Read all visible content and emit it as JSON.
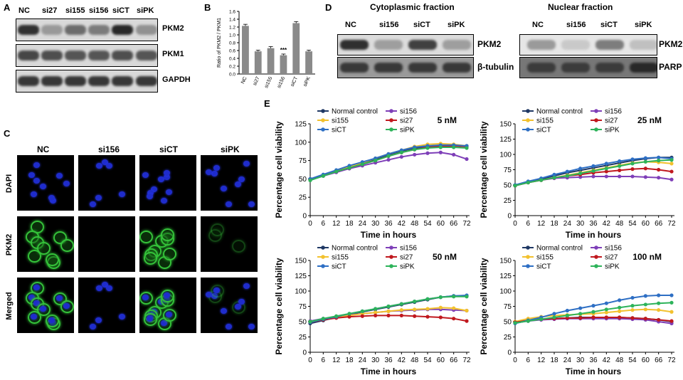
{
  "panels": {
    "a": "A",
    "b": "B",
    "c": "C",
    "d": "D",
    "e": "E"
  },
  "panel_a": {
    "lanes": [
      "NC",
      "si27",
      "si155",
      "si156",
      "siCT",
      "siPK"
    ],
    "rows": [
      "PKM2",
      "PKM1",
      "GAPDH"
    ]
  },
  "panel_b_chart": {
    "type": "bar",
    "ylabel": "Ratio of PKM2 / PKM1",
    "categories": [
      "NC",
      "si27",
      "si155",
      "si156",
      "siCT",
      "siPK"
    ],
    "values": [
      1.23,
      0.58,
      0.66,
      0.48,
      1.3,
      0.58
    ],
    "errors": [
      0.04,
      0.03,
      0.04,
      0.03,
      0.04,
      0.03
    ],
    "ylim": [
      0,
      1.6
    ],
    "yticks": [
      "0.0",
      "0.2",
      "0.4",
      "0.6",
      "0.8",
      "1.0",
      "1.2",
      "1.4",
      "1.6"
    ],
    "annotation": "***",
    "annotation_index": 3,
    "bar_color": "#8a8a8a"
  },
  "panel_c": {
    "columns": [
      "NC",
      "si156",
      "siCT",
      "siPK"
    ],
    "rows": [
      "DAPI",
      "PKM2",
      "Merged"
    ]
  },
  "panel_d": {
    "left_title": "Cytoplasmic fraction",
    "right_title": "Nuclear fraction",
    "left_lanes": [
      "NC",
      "si156",
      "siCT",
      "siPK"
    ],
    "right_lanes": [
      "NC",
      "si156",
      "siCT",
      "siPK"
    ],
    "left_rows": [
      "PKM2",
      "β-tubulin"
    ],
    "right_rows": [
      "PKM2",
      "PARP"
    ]
  },
  "legend_names": [
    "Normal control",
    "si156",
    "si155",
    "si27",
    "siCT",
    "siPK"
  ],
  "series_colors": {
    "Normal control": "#1f3864",
    "si156": "#7e3fb8",
    "si155": "#f2c12e",
    "si27": "#c0181e",
    "siCT": "#2e6fc4",
    "siPK": "#2db35a"
  },
  "chart_data": [
    {
      "type": "line",
      "title": "5 nM",
      "xlabel": "Time in hours",
      "ylabel": "Percentage cell viability",
      "x": [
        0,
        6,
        12,
        18,
        24,
        30,
        36,
        42,
        48,
        54,
        60,
        66,
        72
      ],
      "xlim": [
        0,
        72
      ],
      "ylim": [
        0,
        125
      ],
      "yticks": [
        0,
        25,
        50,
        75,
        100,
        125
      ],
      "series": [
        {
          "name": "Normal control",
          "values": [
            49,
            55,
            60,
            66,
            71,
            76,
            83,
            88,
            92,
            94,
            95,
            96,
            95
          ]
        },
        {
          "name": "si156",
          "values": [
            49,
            54,
            59,
            64,
            68,
            72,
            76,
            80,
            83,
            85,
            86,
            83,
            77
          ]
        },
        {
          "name": "si155",
          "values": [
            50,
            55,
            61,
            67,
            72,
            78,
            84,
            89,
            94,
            97,
            98,
            97,
            95
          ]
        },
        {
          "name": "si27",
          "values": [
            49,
            55,
            60,
            65,
            70,
            75,
            81,
            86,
            90,
            93,
            95,
            95,
            94
          ]
        },
        {
          "name": "siCT",
          "values": [
            50,
            56,
            62,
            68,
            73,
            78,
            84,
            89,
            93,
            95,
            96,
            96,
            95
          ]
        },
        {
          "name": "siPK",
          "values": [
            48,
            54,
            60,
            65,
            70,
            75,
            81,
            86,
            90,
            92,
            93,
            93,
            92
          ]
        }
      ]
    },
    {
      "type": "line",
      "title": "25 nM",
      "xlabel": "Time in hours",
      "ylabel": "Percentage cell viability",
      "x": [
        0,
        6,
        12,
        18,
        24,
        30,
        36,
        42,
        48,
        54,
        60,
        66,
        72
      ],
      "xlim": [
        0,
        72
      ],
      "ylim": [
        0,
        150
      ],
      "yticks": [
        0,
        25,
        50,
        75,
        100,
        125,
        150
      ],
      "series": [
        {
          "name": "Normal control",
          "values": [
            49,
            55,
            60,
            65,
            70,
            74,
            78,
            82,
            86,
            90,
            93,
            95,
            95
          ]
        },
        {
          "name": "si156",
          "values": [
            49,
            54,
            58,
            61,
            62,
            63,
            64,
            64,
            64,
            64,
            63,
            62,
            59
          ]
        },
        {
          "name": "si155",
          "values": [
            49,
            54,
            58,
            62,
            66,
            70,
            74,
            78,
            82,
            86,
            88,
            87,
            85
          ]
        },
        {
          "name": "si27",
          "values": [
            49,
            54,
            58,
            62,
            65,
            67,
            70,
            72,
            74,
            76,
            77,
            75,
            72
          ]
        },
        {
          "name": "siCT",
          "values": [
            50,
            56,
            61,
            67,
            72,
            77,
            81,
            85,
            89,
            92,
            94,
            95,
            93
          ]
        },
        {
          "name": "siPK",
          "values": [
            49,
            54,
            58,
            62,
            65,
            69,
            73,
            77,
            81,
            85,
            88,
            90,
            91
          ]
        }
      ]
    },
    {
      "type": "line",
      "title": "50 nM",
      "xlabel": "Time in hours",
      "ylabel": "Percentage cell viability",
      "x": [
        0,
        6,
        12,
        18,
        24,
        30,
        36,
        42,
        48,
        54,
        60,
        66,
        72
      ],
      "xlim": [
        0,
        72
      ],
      "ylim": [
        0,
        150
      ],
      "yticks": [
        0,
        25,
        50,
        75,
        100,
        125,
        150
      ],
      "series": [
        {
          "name": "Normal control",
          "values": [
            47,
            52,
            57,
            62,
            66,
            70,
            74,
            78,
            82,
            86,
            90,
            92,
            92
          ]
        },
        {
          "name": "si156",
          "values": [
            51,
            55,
            58,
            61,
            63,
            65,
            67,
            68,
            69,
            70,
            70,
            69,
            68
          ]
        },
        {
          "name": "si155",
          "values": [
            50,
            54,
            57,
            60,
            63,
            65,
            67,
            69,
            70,
            71,
            73,
            72,
            68
          ]
        },
        {
          "name": "si27",
          "values": [
            49,
            53,
            56,
            58,
            59,
            60,
            60,
            60,
            59,
            58,
            57,
            55,
            51
          ]
        },
        {
          "name": "siCT",
          "values": [
            49,
            54,
            58,
            63,
            67,
            71,
            75,
            79,
            83,
            87,
            90,
            92,
            93
          ]
        },
        {
          "name": "siPK",
          "values": [
            50,
            55,
            59,
            63,
            67,
            71,
            75,
            79,
            83,
            87,
            90,
            91,
            91
          ]
        }
      ]
    },
    {
      "type": "line",
      "title": "100 nM",
      "xlabel": "Time in hours",
      "ylabel": "Percentage cell viability",
      "x": [
        0,
        6,
        12,
        18,
        24,
        30,
        36,
        42,
        48,
        54,
        60,
        66,
        72
      ],
      "xlim": [
        0,
        72
      ],
      "ylim": [
        0,
        150
      ],
      "yticks": [
        0,
        25,
        50,
        75,
        100,
        125,
        150
      ],
      "series": [
        {
          "name": "Normal control",
          "values": [
            49,
            52,
            54,
            55,
            56,
            57,
            57,
            57,
            57,
            56,
            55,
            53,
            50
          ]
        },
        {
          "name": "si156",
          "values": [
            48,
            51,
            53,
            54,
            55,
            55,
            55,
            55,
            55,
            54,
            53,
            50,
            47
          ]
        },
        {
          "name": "si155",
          "values": [
            50,
            55,
            58,
            60,
            61,
            62,
            63,
            65,
            67,
            69,
            70,
            69,
            66
          ]
        },
        {
          "name": "si27",
          "values": [
            49,
            52,
            54,
            55,
            56,
            56,
            57,
            57,
            57,
            56,
            55,
            53,
            51
          ]
        },
        {
          "name": "siCT",
          "values": [
            47,
            52,
            57,
            63,
            68,
            72,
            76,
            80,
            85,
            89,
            92,
            93,
            93
          ]
        },
        {
          "name": "siPK",
          "values": [
            48,
            51,
            54,
            57,
            60,
            63,
            66,
            70,
            73,
            76,
            78,
            80,
            81
          ]
        }
      ]
    }
  ]
}
